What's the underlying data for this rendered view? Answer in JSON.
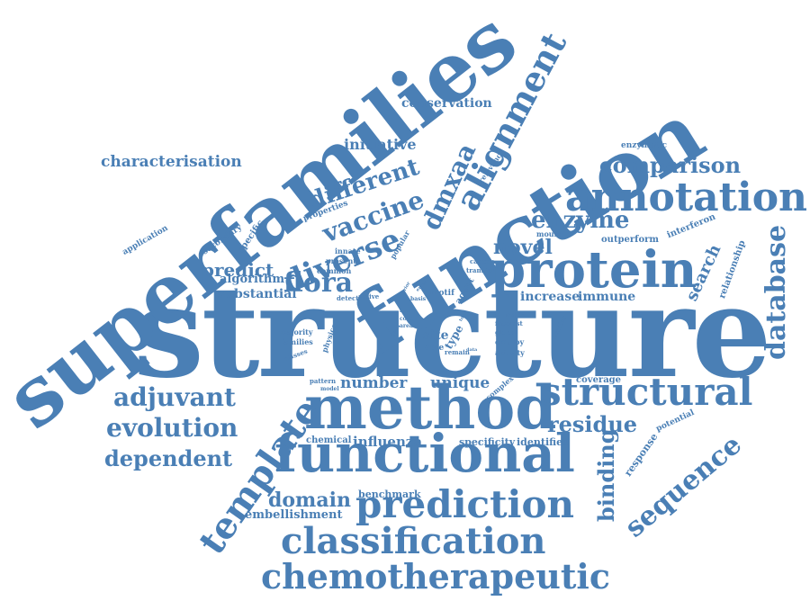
{
  "color": "#4a7fb5",
  "words": {
    "structure": "structure",
    "superfamilies": "superfamilies",
    "function": "function",
    "method": "method",
    "functional": "functional",
    "protein": "protein",
    "annotation": "annotation",
    "structural": "structural",
    "prediction": "prediction",
    "classification": "classification",
    "chemotherapeutic": "chemotherapeutic",
    "template": "template",
    "alignment": "alignment",
    "diverse": "diverse",
    "comparison": "comparison",
    "enzyme": "enzyme",
    "database": "database",
    "sequence": "sequence",
    "flora": "flora",
    "adjuvant": "adjuvant",
    "evolution": "evolution",
    "dependent": "dependent",
    "binding": "binding",
    "residue": "residue",
    "domain": "domain",
    "different": "different",
    "vaccine": "vaccine",
    "dmxaa": "dmxaa",
    "novel": "novel",
    "predict": "predict",
    "conservation": "conservation",
    "initiative": "initiative",
    "characterisation": "characterisation",
    "search": "search",
    "number": "number",
    "unique": "unique",
    "influenza": "influenza",
    "benchmark": "benchmark",
    "embellishment": "embellishment",
    "increase": "increase",
    "immune": "immune",
    "algorithm": "algorithm",
    "substantial": "substantial",
    "site": "site",
    "specificity": "specificity",
    "identifies": "identifies",
    "chemical": "chemical",
    "coverage": "coverage",
    "response": "response",
    "potential": "potential",
    "relationship": "relationship",
    "outperform": "outperform",
    "interferon": "interferon",
    "enzymatic": "enzymatic",
    "relevance": "relevance",
    "mouse": "mouse",
    "properties": "properties",
    "specific": "specific",
    "secondary": "secondary",
    "application": "application",
    "popular": "popular",
    "innate": "innate",
    "present": "present",
    "common": "common",
    "detect": "detect",
    "active": "active",
    "majority": "majority",
    "families": "families",
    "classes": "classes",
    "physico": "physico",
    "pattern": "pattern",
    "model": "model",
    "cancer": "cancer",
    "transfer": "transfer",
    "motif": "motif",
    "agent": "agent",
    "type": "type",
    "able": "able",
    "remain": "remain",
    "complex": "complex",
    "interest": "interest",
    "global": "global",
    "employ": "employ",
    "activity": "activity",
    "major": "major",
    "similar": "similar",
    "role": "role",
    "core": "core",
    "area": "area",
    "lead": "lead",
    "prior": "prior",
    "basis": "basis",
    "error": "error",
    "data": "data",
    "tool": "tool"
  }
}
